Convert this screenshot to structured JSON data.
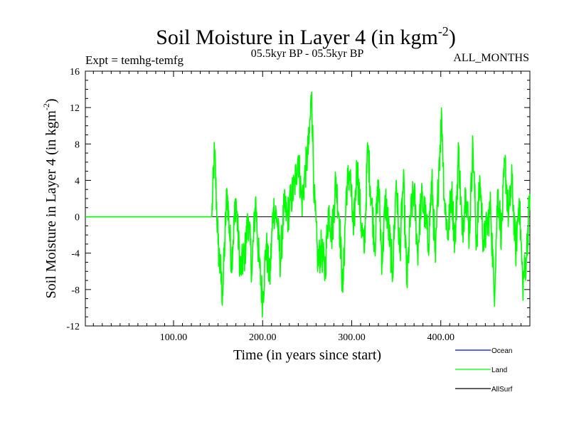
{
  "chart_data": {
    "type": "line",
    "title": "Soil Moisture in Layer 4 (in kgm",
    "title_sup": "-2",
    "title_end": ")",
    "subtitle": "05.5kyr BP - 05.5kyr BP",
    "left_note": "Expt = temhg-temfg",
    "right_note": "ALL_MONTHS",
    "xlabel": "Time (in years since start)",
    "ylabel": "Soil Moisture in Layer 4 (in kgm",
    "ylabel_sup": "-2",
    "ylabel_end": ")",
    "xlim": [
      1,
      500
    ],
    "ylim": [
      -12,
      16
    ],
    "x_ticks": [
      100,
      200,
      300,
      400
    ],
    "x_tick_labels": [
      "100.00",
      "200.00",
      "300.00",
      "400.00"
    ],
    "y_ticks": [
      -12,
      -8,
      -4,
      0,
      4,
      8,
      12,
      16
    ],
    "y_tick_labels": [
      "-12",
      "-8",
      "-4",
      "0",
      "4",
      "8",
      "12",
      "16"
    ],
    "zero_line": 0,
    "legend": [
      {
        "name": "Ocean",
        "color": "#0000ff"
      },
      {
        "name": "Land",
        "color": "#00ff00"
      },
      {
        "name": "AllSurf",
        "color": "#000000"
      }
    ],
    "series": [
      {
        "name": "Land",
        "color": "#00ff00",
        "flat_until": 143,
        "flat_value": 0,
        "anchor_points": [
          [
            143,
            0
          ],
          [
            146,
            7.3
          ],
          [
            150,
            -3
          ],
          [
            155,
            -8.6
          ],
          [
            160,
            3
          ],
          [
            165,
            -5
          ],
          [
            170,
            2
          ],
          [
            175,
            -6
          ],
          [
            180,
            -4
          ],
          [
            184,
            0
          ],
          [
            188,
            -6
          ],
          [
            192,
            2
          ],
          [
            196,
            -5
          ],
          [
            200,
            -9.2
          ],
          [
            204,
            -3
          ],
          [
            208,
            -7
          ],
          [
            212,
            1
          ],
          [
            216,
            0
          ],
          [
            220,
            -5
          ],
          [
            224,
            1
          ],
          [
            228,
            0
          ],
          [
            232,
            2
          ],
          [
            236,
            3.5
          ],
          [
            240,
            6.7
          ],
          [
            244,
            1.5
          ],
          [
            248,
            5
          ],
          [
            252,
            8
          ],
          [
            255,
            13.7
          ],
          [
            258,
            2
          ],
          [
            262,
            -5
          ],
          [
            266,
            -3.5
          ],
          [
            270,
            -6
          ],
          [
            274,
            1
          ],
          [
            278,
            -2
          ],
          [
            282,
            4
          ],
          [
            286,
            0
          ],
          [
            290,
            -8.3
          ],
          [
            294,
            3
          ],
          [
            298,
            5
          ],
          [
            302,
            -2
          ],
          [
            306,
            6
          ],
          [
            310,
            0
          ],
          [
            314,
            -4
          ],
          [
            318,
            7.7
          ],
          [
            322,
            2
          ],
          [
            326,
            -3
          ],
          [
            330,
            4
          ],
          [
            334,
            -5
          ],
          [
            338,
            2
          ],
          [
            342,
            -2
          ],
          [
            346,
            -6
          ],
          [
            350,
            4
          ],
          [
            354,
            -4
          ],
          [
            358,
            4
          ],
          [
            362,
            -7.5
          ],
          [
            366,
            0
          ],
          [
            370,
            3
          ],
          [
            374,
            -4
          ],
          [
            378,
            2
          ],
          [
            382,
            0.5
          ],
          [
            386,
            -3
          ],
          [
            390,
            4
          ],
          [
            394,
            -5
          ],
          [
            398,
            6
          ],
          [
            401,
            11
          ],
          [
            404,
            2
          ],
          [
            408,
            -2
          ],
          [
            412,
            3
          ],
          [
            416,
            -3
          ],
          [
            420,
            7.5
          ],
          [
            424,
            -2
          ],
          [
            428,
            3
          ],
          [
            432,
            -2
          ],
          [
            436,
            8
          ],
          [
            440,
            -3
          ],
          [
            444,
            4
          ],
          [
            448,
            -3
          ],
          [
            452,
            -1
          ],
          [
            456,
            1
          ],
          [
            460,
            -8.7
          ],
          [
            464,
            3
          ],
          [
            468,
            -2
          ],
          [
            472,
            6
          ],
          [
            476,
            0
          ],
          [
            480,
            4
          ],
          [
            484,
            -4
          ],
          [
            488,
            2
          ],
          [
            492,
            -7.5
          ],
          [
            496,
            -4.5
          ],
          [
            500,
            2.5
          ]
        ],
        "noise_amplitude": 2.2
      }
    ]
  }
}
